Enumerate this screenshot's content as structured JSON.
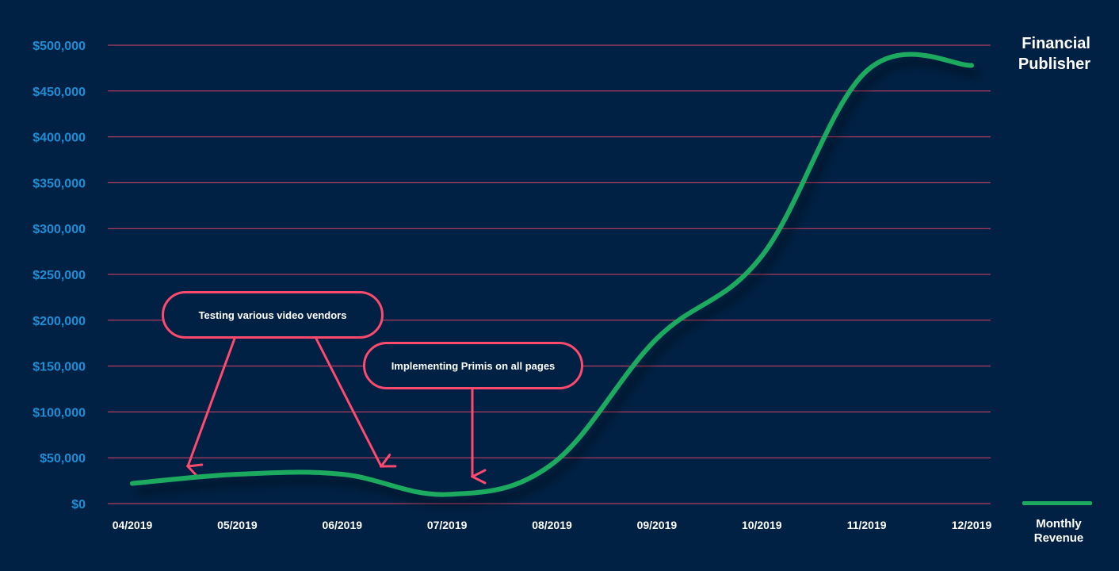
{
  "title": "Financial\nPublisher",
  "legend": {
    "label": "Monthly\nRevenue",
    "color": "#1eaa5e"
  },
  "callouts": [
    {
      "text": "Testing various video vendors"
    },
    {
      "text": "Implementing Primis on all pages"
    }
  ],
  "colors": {
    "background": "#002144",
    "grid": "#ff4a6e",
    "annotation": "#ff4a6e",
    "ytick": "#1e8fd6",
    "xtick": "#ffffff",
    "line": "#1eaa5e"
  },
  "chart_data": {
    "type": "line",
    "title": "Financial Publisher",
    "categories": [
      "04/2019",
      "05/2019",
      "06/2019",
      "07/2019",
      "08/2019",
      "09/2019",
      "10/2019",
      "11/2019",
      "12/2019"
    ],
    "series": [
      {
        "name": "Monthly Revenue",
        "values": [
          22000,
          32000,
          32000,
          10000,
          43000,
          180000,
          270000,
          472000,
          478000
        ]
      }
    ],
    "yticks": [
      "$0",
      "$50,000",
      "$100,000",
      "$150,000",
      "$200,000",
      "$250,000",
      "$300,000",
      "$350,000",
      "$400,000",
      "$450,000",
      "$500,000"
    ],
    "ylim": [
      0,
      500000
    ],
    "grid": true,
    "legend_position": "bottom-right"
  }
}
